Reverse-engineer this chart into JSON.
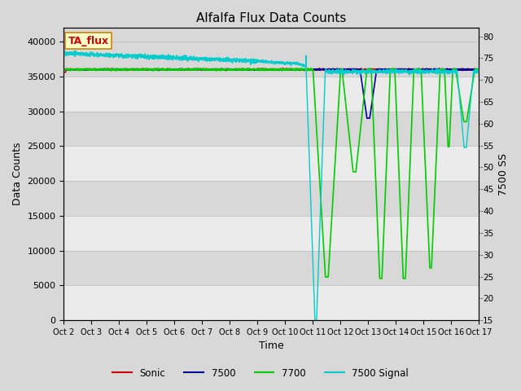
{
  "title": "Alfalfa Flux Data Counts",
  "xlabel": "Time",
  "ylabel_left": "Data Counts",
  "ylabel_right": "7500 SS",
  "background_color": "#d8d8d8",
  "plot_bg_color": "#d8d8d8",
  "annotation_text": "TA_flux",
  "annotation_bg": "#ffffcc",
  "annotation_border": "#cc8800",
  "x_tick_labels": [
    "Oct 2",
    "Oct 3",
    "Oct 4",
    "Oct 5",
    "Oct 6",
    "Oct 7",
    "Oct 8",
    "Oct 9",
    "Oct 10",
    "Oct 11",
    "Oct 12",
    "Oct 13",
    "Oct 14",
    "Oct 15",
    "Oct 16",
    "Oct 17"
  ],
  "ylim_left": [
    0,
    42000
  ],
  "ylim_right": [
    15,
    82
  ],
  "yticks_left": [
    0,
    5000,
    10000,
    15000,
    20000,
    25000,
    30000,
    35000,
    40000
  ],
  "yticks_right": [
    15,
    20,
    25,
    30,
    35,
    40,
    45,
    50,
    55,
    60,
    65,
    70,
    75,
    80
  ],
  "legend_labels": [
    "Sonic",
    "7500",
    "7700",
    "7500 Signal"
  ],
  "legend_colors": [
    "#cc0000",
    "#000099",
    "#00cc00",
    "#00cccc"
  ],
  "sonic_color": "#cc0000",
  "c7500_color": "#000099",
  "c7700_color": "#00cc00",
  "signal_color": "#00cccc"
}
